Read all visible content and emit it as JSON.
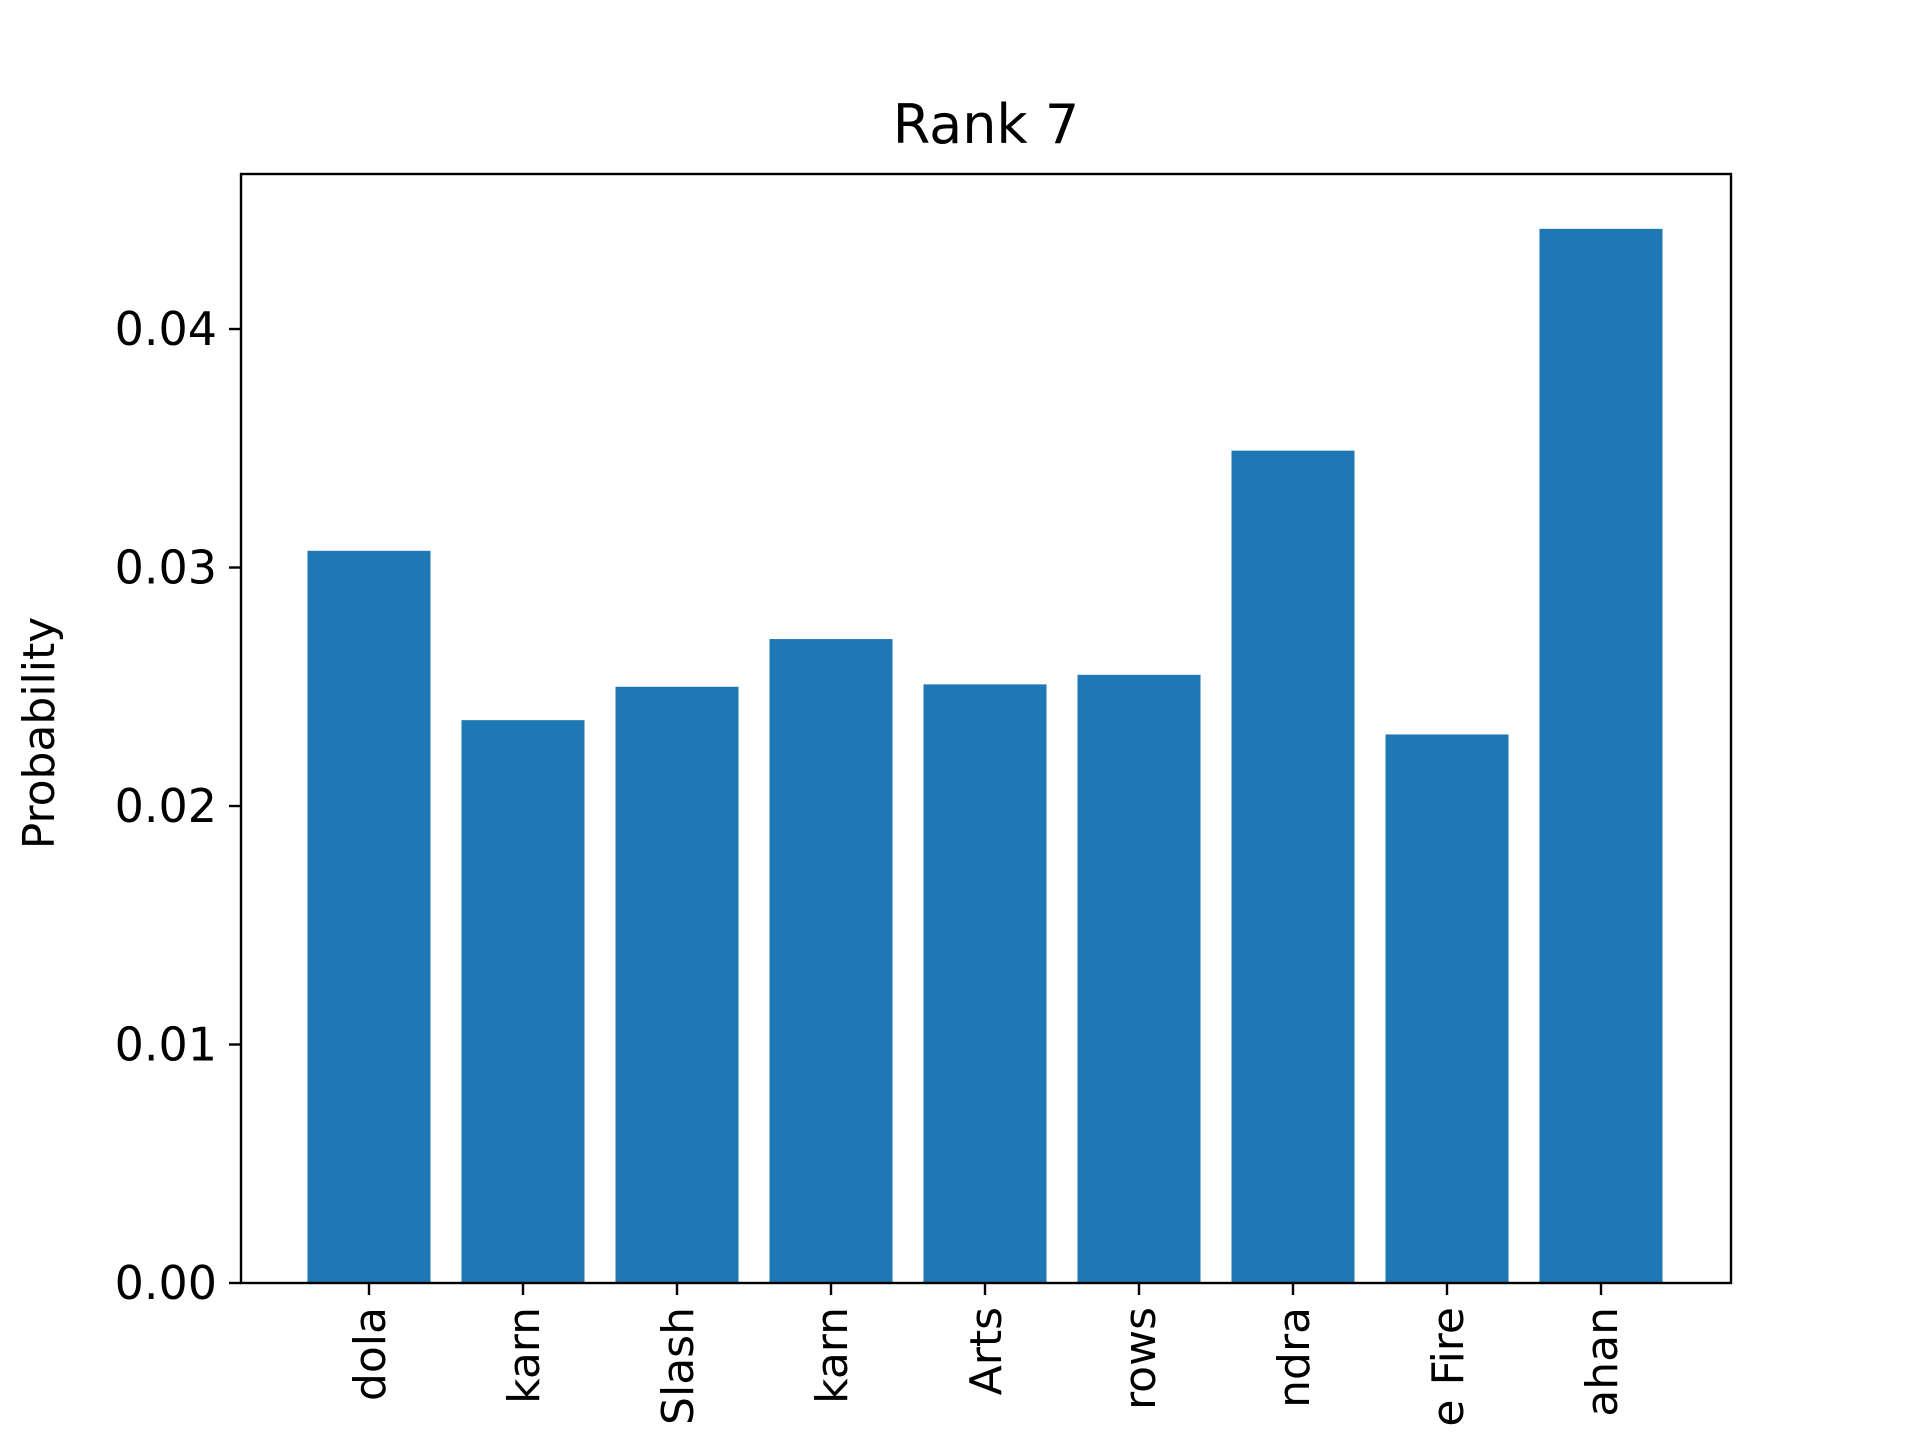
{
  "chart_data": {
    "type": "bar",
    "title": "Rank 7",
    "xlabel": "",
    "ylabel": "Probability",
    "categories": [
      "dola",
      "karn",
      "Slash",
      "karn",
      "Arts",
      "rows",
      "ndra",
      "e Fire",
      "ahan"
    ],
    "values": [
      0.0307,
      0.0236,
      0.025,
      0.027,
      0.0251,
      0.0255,
      0.0349,
      0.023,
      0.0442
    ],
    "ylim": [
      0,
      0.0465
    ],
    "yticks": [
      0.0,
      0.01,
      0.02,
      0.03,
      0.04
    ],
    "ytick_labels": [
      "0.00",
      "0.01",
      "0.02",
      "0.03",
      "0.04"
    ],
    "grid": false,
    "bar_color": "#1f77b4"
  }
}
